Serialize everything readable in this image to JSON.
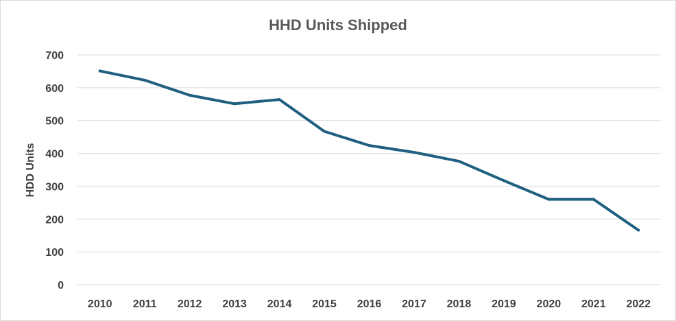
{
  "chart_data": {
    "type": "line",
    "title": "HHD Units Shipped",
    "xlabel": "",
    "ylabel": "HDD Units",
    "categories": [
      "2010",
      "2011",
      "2012",
      "2013",
      "2014",
      "2015",
      "2016",
      "2017",
      "2018",
      "2019",
      "2020",
      "2021",
      "2022"
    ],
    "series": [
      {
        "values": [
          651,
          623,
          577,
          551,
          564,
          467,
          424,
          403,
          376,
          317,
          260,
          260,
          166
        ],
        "color": "#1f5f7f"
      }
    ],
    "ylim": [
      0,
      700
    ],
    "yticks": [
      0,
      100,
      200,
      300,
      400,
      500,
      600,
      700
    ],
    "grid": true,
    "legend": "none"
  }
}
